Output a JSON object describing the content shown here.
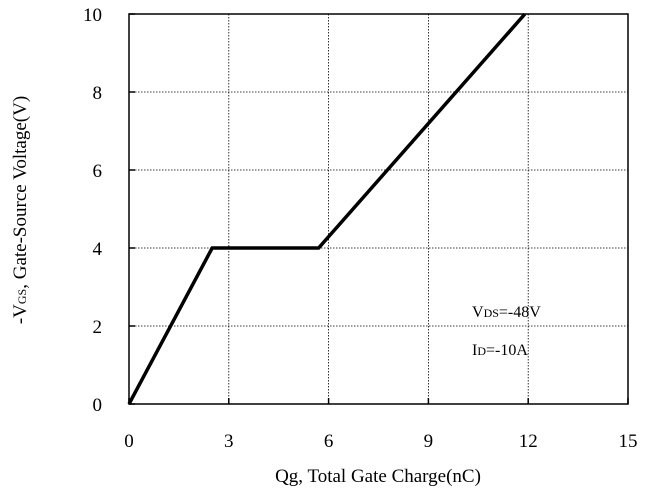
{
  "chart_data": {
    "type": "line",
    "title": "",
    "xlabel": "Qg, Total Gate Charge(nC)",
    "ylabel_prefix": "-V",
    "ylabel_subscript": "GS",
    "ylabel_suffix": ", Gate-Source Voltage(V)",
    "xlim": [
      0,
      15
    ],
    "ylim": [
      0,
      10
    ],
    "xticks": [
      0,
      3,
      6,
      9,
      12,
      15
    ],
    "yticks": [
      0,
      2,
      4,
      6,
      8,
      10
    ],
    "grid": true,
    "series": [
      {
        "x": [
          0,
          2.5,
          5.7,
          11.9
        ],
        "y": [
          0,
          4.0,
          4.0,
          10.0
        ]
      }
    ],
    "annotations": [
      {
        "prefix": "V",
        "subscript": "DS",
        "suffix": "=-48V"
      },
      {
        "prefix": "I",
        "subscript": "D",
        "suffix": "=-10A"
      }
    ]
  }
}
